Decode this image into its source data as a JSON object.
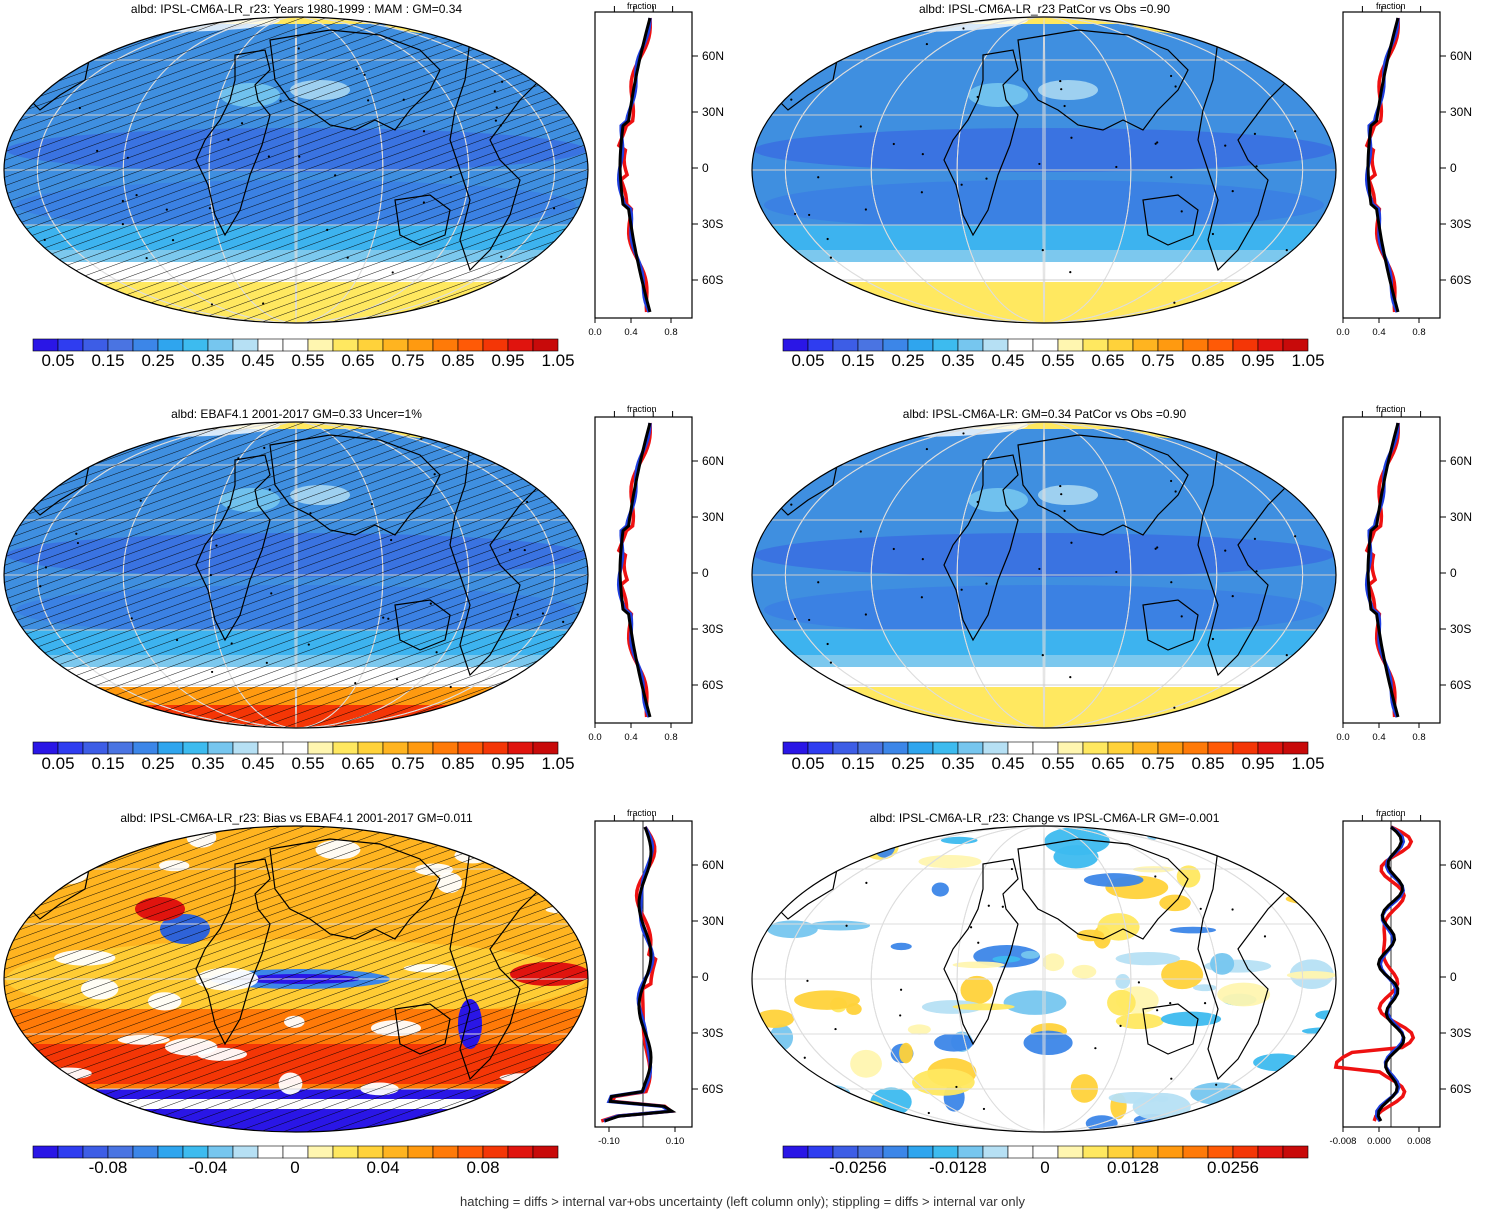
{
  "footnote": "hatching = diffs > internal var+obs uncertainty (left column only); stippling = diffs > internal var only",
  "colors": {
    "ocean_blue": "#3f8fe0",
    "deep_blue": "#2f63d8",
    "ice_yellow": "#ffe860",
    "red_line": "#ee1111",
    "blue_line": "#1f3fe0",
    "black_line": "#000000"
  },
  "abs_colorbar": {
    "colors": [
      "#2a16e6",
      "#2f3df0",
      "#3d5de6",
      "#4a74e2",
      "#3c86e8",
      "#2fa5ee",
      "#3dbbef",
      "#76c6ef",
      "#b6e0f4",
      "#ffffff",
      "#ffffff",
      "#fff6b0",
      "#ffe860",
      "#ffd23a",
      "#ffb420",
      "#ff9a10",
      "#ff7a08",
      "#ff5a06",
      "#f43606",
      "#e0140e",
      "#c80a0a"
    ],
    "labels": [
      "0.05",
      "0.15",
      "0.25",
      "0.35",
      "0.45",
      "0.55",
      "0.65",
      "0.75",
      "0.85",
      "0.95",
      "1.05"
    ]
  },
  "bias_colorbar": {
    "colors": [
      "#2a16e6",
      "#2f3df0",
      "#3d5de6",
      "#4a74e2",
      "#3c86e8",
      "#2fa5ee",
      "#3dbbef",
      "#76c6ef",
      "#b6e0f4",
      "#ffffff",
      "#ffffff",
      "#fff6b0",
      "#ffe860",
      "#ffd23a",
      "#ffb420",
      "#ff9a10",
      "#ff7a08",
      "#ff5a06",
      "#f43606",
      "#e0140e",
      "#c80a0a"
    ],
    "labels": [
      "-0.08",
      "-0.04",
      "0",
      "0.04",
      "0.08"
    ]
  },
  "change_colorbar": {
    "colors": [
      "#2a16e6",
      "#2f3df0",
      "#3d5de6",
      "#4a74e2",
      "#3c86e8",
      "#2fa5ee",
      "#3dbbef",
      "#76c6ef",
      "#b6e0f4",
      "#ffffff",
      "#ffffff",
      "#fff6b0",
      "#ffe860",
      "#ffd23a",
      "#ffb420",
      "#ff9a10",
      "#ff7a08",
      "#ff5a06",
      "#f43606",
      "#e0140e",
      "#c80a0a"
    ],
    "labels": [
      "-0.0256",
      "-0.0128",
      "0",
      "0.0128",
      "0.0256"
    ]
  },
  "profile_caption": "fraction",
  "lat_labels": [
    "60N",
    "30N",
    "0",
    "30S",
    "60S"
  ],
  "panels": [
    {
      "title": "albd: IPSL-CM6A-LR_r23: Years 1980-1999 : MAM : GM=0.34",
      "kind": "abs",
      "hatch": true,
      "x_ticks": [
        "0.0",
        "0.4",
        "0.8"
      ]
    },
    {
      "title": "albd: IPSL-CM6A-LR_r23 PatCor vs Obs =0.90",
      "kind": "abs",
      "hatch": false,
      "x_ticks": [
        "0.0",
        "0.4",
        "0.8"
      ]
    },
    {
      "title": "albd: EBAF4.1 2001-2017 GM=0.33 Uncer=1%",
      "kind": "abs",
      "hatch": true,
      "x_ticks": [
        "0.0",
        "0.4",
        "0.8"
      ]
    },
    {
      "title": "albd: IPSL-CM6A-LR: GM=0.34 PatCor vs Obs =0.90",
      "kind": "abs",
      "hatch": false,
      "x_ticks": [
        "0.0",
        "0.4",
        "0.8"
      ]
    },
    {
      "title": "albd: IPSL-CM6A-LR_r23: Bias vs EBAF4.1 2001-2017 GM=0.011",
      "kind": "bias",
      "hatch": true,
      "x_ticks": [
        "-0.10",
        "0.10"
      ]
    },
    {
      "title": "albd: IPSL-CM6A-LR_r23: Change vs IPSL-CM6A-LR GM=-0.001",
      "kind": "change",
      "hatch": false,
      "x_ticks": [
        "-0.008",
        "0.000",
        "0.008"
      ]
    }
  ]
}
